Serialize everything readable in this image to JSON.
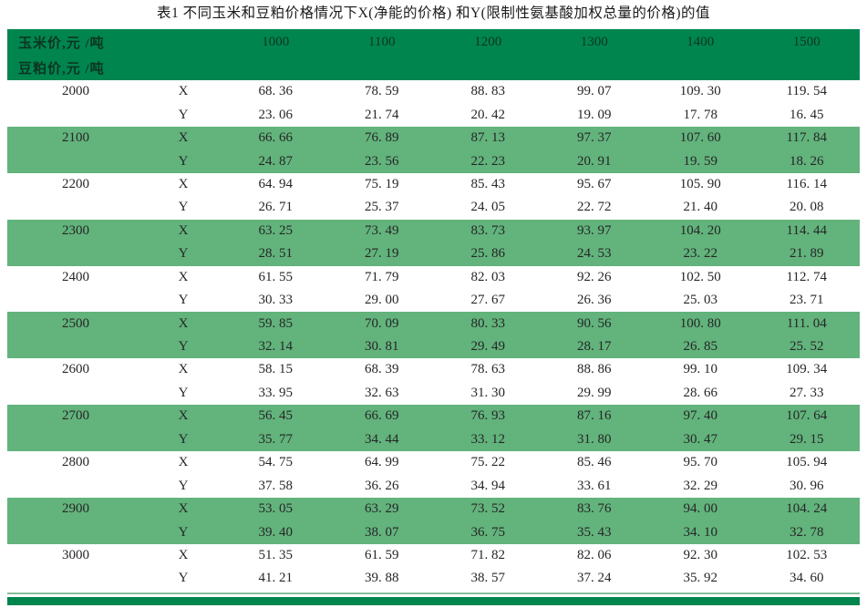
{
  "title": "表1  不同玉米和豆粕价格情况下X(净能的价格) 和Y(限制性氨基酸加权总量的价格)的值",
  "header": {
    "corn_label": "玉米价,元 /吨",
    "soy_label": "豆粕价,元 /吨",
    "corn_prices": [
      "1000",
      "1100",
      "1200",
      "1300",
      "1400",
      "1500"
    ]
  },
  "row_labels": {
    "x": "X",
    "y": "Y"
  },
  "colors": {
    "header_green": "#00854F",
    "stripe_green": "#62B37C",
    "thin_rule": "#86BE9B",
    "bottom_bar": "#00854F",
    "text": "#262626"
  },
  "rows": [
    {
      "soy_price": "2000",
      "highlight": false,
      "x": [
        "68. 36",
        "78. 59",
        "88. 83",
        "99. 07",
        "109. 30",
        "119. 54"
      ],
      "y": [
        "23. 06",
        "21. 74",
        "20. 42",
        "19. 09",
        "17. 78",
        "16. 45"
      ]
    },
    {
      "soy_price": "2100",
      "highlight": true,
      "x": [
        "66. 66",
        "76. 89",
        "87. 13",
        "97. 37",
        "107. 60",
        "117. 84"
      ],
      "y": [
        "24. 87",
        "23. 56",
        "22. 23",
        "20. 91",
        "19. 59",
        "18. 26"
      ]
    },
    {
      "soy_price": "2200",
      "highlight": false,
      "x": [
        "64. 94",
        "75. 19",
        "85. 43",
        "95. 67",
        "105. 90",
        "116. 14"
      ],
      "y": [
        "26. 71",
        "25. 37",
        "24. 05",
        "22. 72",
        "21. 40",
        "20. 08"
      ]
    },
    {
      "soy_price": "2300",
      "highlight": true,
      "x": [
        "63. 25",
        "73. 49",
        "83. 73",
        "93. 97",
        "104. 20",
        "114. 44"
      ],
      "y": [
        "28. 51",
        "27. 19",
        "25. 86",
        "24. 53",
        "23. 22",
        "21. 89"
      ]
    },
    {
      "soy_price": "2400",
      "highlight": false,
      "x": [
        "61. 55",
        "71. 79",
        "82. 03",
        "92. 26",
        "102. 50",
        "112. 74"
      ],
      "y": [
        "30. 33",
        "29. 00",
        "27. 67",
        "26. 36",
        "25. 03",
        "23. 71"
      ]
    },
    {
      "soy_price": "2500",
      "highlight": true,
      "x": [
        "59. 85",
        "70. 09",
        "80. 33",
        "90. 56",
        "100. 80",
        "111. 04"
      ],
      "y": [
        "32. 14",
        "30. 81",
        "29. 49",
        "28. 17",
        "26. 85",
        "25. 52"
      ]
    },
    {
      "soy_price": "2600",
      "highlight": false,
      "x": [
        "58. 15",
        "68. 39",
        "78. 63",
        "88. 86",
        "99. 10",
        "109. 34"
      ],
      "y": [
        "33. 95",
        "32. 63",
        "31. 30",
        "29. 99",
        "28. 66",
        "27. 33"
      ]
    },
    {
      "soy_price": "2700",
      "highlight": true,
      "x": [
        "56. 45",
        "66. 69",
        "76. 93",
        "87. 16",
        "97. 40",
        "107. 64"
      ],
      "y": [
        "35. 77",
        "34. 44",
        "33. 12",
        "31. 80",
        "30. 47",
        "29. 15"
      ]
    },
    {
      "soy_price": "2800",
      "highlight": false,
      "x": [
        "54. 75",
        "64. 99",
        "75. 22",
        "85. 46",
        "95. 70",
        "105. 94"
      ],
      "y": [
        "37. 58",
        "36. 26",
        "34. 94",
        "33. 61",
        "32. 29",
        "30. 96"
      ]
    },
    {
      "soy_price": "2900",
      "highlight": true,
      "x": [
        "53. 05",
        "63. 29",
        "73. 52",
        "83. 76",
        "94. 00",
        "104. 24"
      ],
      "y": [
        "39. 40",
        "38. 07",
        "36. 75",
        "35. 43",
        "34. 10",
        "32. 78"
      ]
    },
    {
      "soy_price": "3000",
      "highlight": false,
      "x": [
        "51. 35",
        "61. 59",
        "71. 82",
        "82. 06",
        "92. 30",
        "102. 53"
      ],
      "y": [
        "41. 21",
        "39. 88",
        "38. 57",
        "37. 24",
        "35. 92",
        "34. 60"
      ]
    }
  ]
}
